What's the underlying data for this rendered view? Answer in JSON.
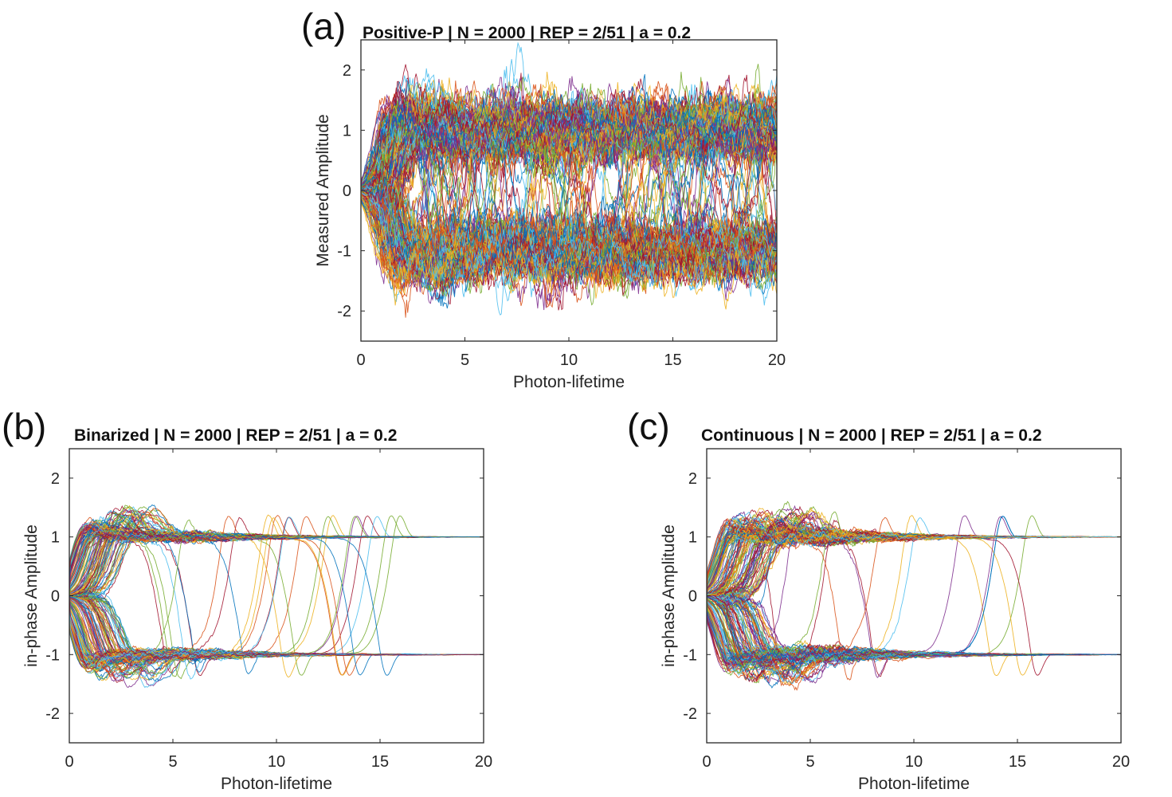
{
  "chart_data": [
    {
      "id": "a",
      "type": "line",
      "panel_label": "(a)",
      "title": "Positive-P | N = 2000 | REP = 2/51 | a = 0.2",
      "xlabel": "Photon-lifetime",
      "ylabel": "Measured Amplitude",
      "xlim": [
        0,
        20
      ],
      "ylim": [
        -2.5,
        2.5
      ],
      "xticks": [
        0,
        5,
        10,
        15,
        20
      ],
      "xtick_labels": [
        "0",
        "5",
        "10",
        "15",
        "20"
      ],
      "yticks": [
        -2,
        -1,
        0,
        1,
        2
      ],
      "ytick_labels": [
        "-2",
        "-1",
        "0",
        "1",
        "2"
      ],
      "grid": false,
      "legend": "none",
      "series_description": "Many trajectories starting at 0 at t=0, bifurcating to +1 and -1 by t~3; persistent noisy oscillations with frequent flips and excursions up to about +2.2 and down to about -2.1 across the whole range",
      "bifurcation_time": 3,
      "stable_states": [
        1,
        -1
      ],
      "max_excursion": 2.2,
      "min_excursion": -2.15,
      "noise_level": "high",
      "final_spread": "wide"
    },
    {
      "id": "b",
      "type": "line",
      "panel_label": "(b)",
      "title": "Binarized | N = 2000 | REP = 2/51 | a = 0.2",
      "xlabel": "Photon-lifetime",
      "ylabel": "in-phase Amplitude",
      "xlim": [
        0,
        20
      ],
      "ylim": [
        -2.5,
        2.5
      ],
      "xticks": [
        0,
        5,
        10,
        15,
        20
      ],
      "xtick_labels": [
        "0",
        "5",
        "10",
        "15",
        "20"
      ],
      "yticks": [
        -2,
        -1,
        0,
        1,
        2
      ],
      "ytick_labels": [
        "-2",
        "-1",
        "0",
        "1",
        "2"
      ],
      "grid": false,
      "legend": "none",
      "series_description": "Trajectories start at 0, rise quickly to about +/-1.4 overshoot by t~0.5, settle at +/-1; a few flip between states up to t~15; all converge exactly to +1 or -1 by t=20",
      "bifurcation_time": 1,
      "stable_states": [
        1,
        -1
      ],
      "max_excursion": 1.85,
      "min_excursion": -1.8,
      "noise_level": "low",
      "last_flip_time": 15.5,
      "final_spread": "converged"
    },
    {
      "id": "c",
      "type": "line",
      "panel_label": "(c)",
      "title": "Continuous | N = 2000 | REP = 2/51 | a = 0.2",
      "xlabel": "Photon-lifetime",
      "ylabel": "in-phase Amplitude",
      "xlim": [
        0,
        20
      ],
      "ylim": [
        -2.5,
        2.5
      ],
      "xticks": [
        0,
        5,
        10,
        15,
        20
      ],
      "xtick_labels": [
        "0",
        "5",
        "10",
        "15",
        "20"
      ],
      "yticks": [
        -2,
        -1,
        0,
        1,
        2
      ],
      "ytick_labels": [
        "-2",
        "-1",
        "0",
        "1",
        "2"
      ],
      "grid": false,
      "legend": "none",
      "series_description": "Trajectories start at 0, bifurcate to +/-1 between t~0.5 and t~5 with overshoots near +/-1.8; several smooth flips occur later (t~10, 13, 16) with undershoots to about -1.9; nearly all converge to +/-1 by t=20",
      "bifurcation_time": 2.5,
      "stable_states": [
        1,
        -1
      ],
      "max_excursion": 1.8,
      "min_excursion": -1.9,
      "noise_level": "medium",
      "late_flip_times": [
        10.3,
        12.9,
        14.3,
        16.0,
        16.6
      ],
      "final_spread": "converged"
    }
  ],
  "line_colors": [
    "#0072BD",
    "#D95319",
    "#EDB120",
    "#7E2F8E",
    "#77AC30",
    "#4DBEEE",
    "#A2142F"
  ],
  "axes_color": "#262626"
}
